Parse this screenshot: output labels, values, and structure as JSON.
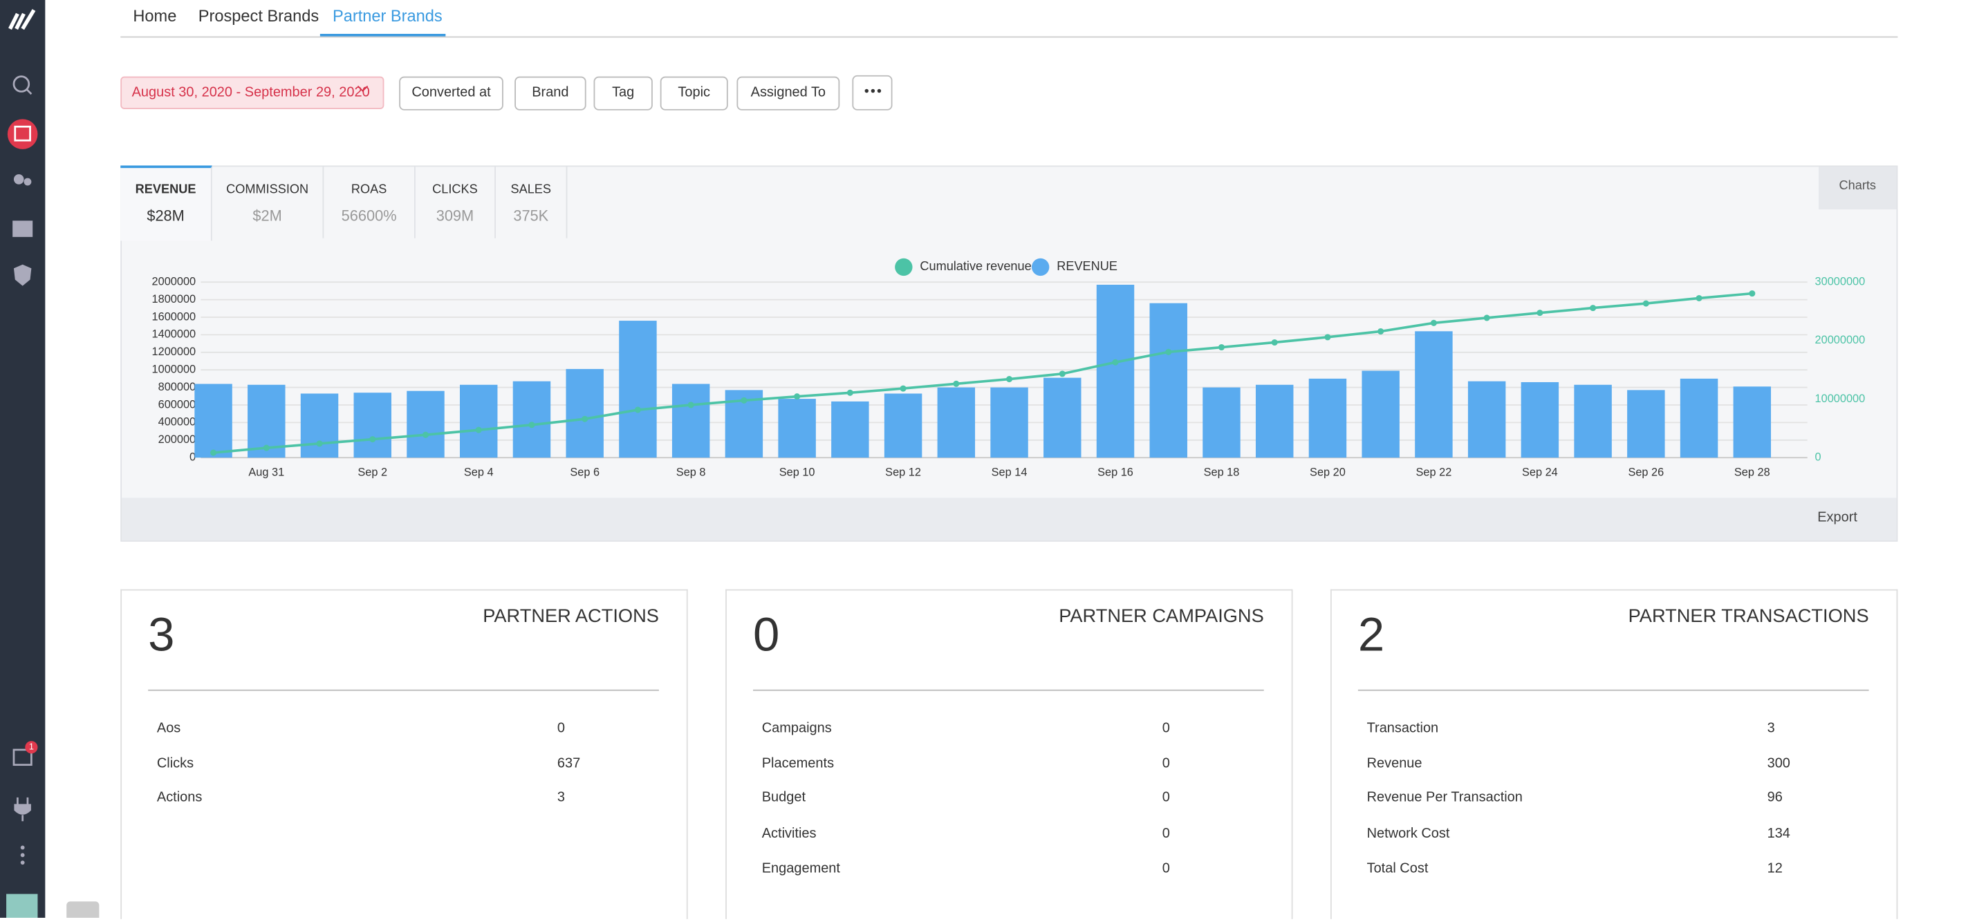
{
  "nav": {
    "tabs": [
      "Home",
      "Prospect Brands",
      "Partner Brands"
    ]
  },
  "sidebar": {
    "badge": "1"
  },
  "filters": {
    "date_range": "August 30, 2020 - September 29, 2020",
    "buttons": [
      "Converted at",
      "Brand",
      "Tag",
      "Topic",
      "Assigned To"
    ]
  },
  "metrics": [
    {
      "label": "REVENUE",
      "value": "$28M"
    },
    {
      "label": "COMMISSION",
      "value": "$2M"
    },
    {
      "label": "ROAS",
      "value": "56600%"
    },
    {
      "label": "CLICKS",
      "value": "309M"
    },
    {
      "label": "SALES",
      "value": "375K"
    }
  ],
  "charts_menu": "Charts",
  "export": "Export",
  "chart_data": {
    "type": "bar",
    "categories": [
      null,
      "Aug 31",
      null,
      "Sep 2",
      null,
      "Sep 4",
      null,
      "Sep 6",
      null,
      "Sep 8",
      null,
      "Sep 10",
      null,
      "Sep 12",
      null,
      "Sep 14",
      null,
      "Sep 16",
      null,
      "Sep 18",
      null,
      "Sep 20",
      null,
      "Sep 22",
      null,
      "Sep 24",
      null,
      "Sep 26",
      null,
      "Sep 28"
    ],
    "series": [
      {
        "name": "Cumulative revenue",
        "type": "line",
        "axis": "y2",
        "color": "#4cc3a6",
        "values": [
          840000,
          1670000,
          2400000,
          3140000,
          3900000,
          4730000,
          5600000,
          6610000,
          8170000,
          9010000,
          9780000,
          10450000,
          11090000,
          11820000,
          12620000,
          13420000,
          14330000,
          16300000,
          18060000,
          18860000,
          19690000,
          20590000,
          21580000,
          23020000,
          23890000,
          24750000,
          25580000,
          26350000,
          27250000,
          28060000
        ]
      },
      {
        "name": "REVENUE",
        "type": "bar",
        "color": "#5aabef",
        "values": [
          840000,
          830000,
          730000,
          740000,
          760000,
          830000,
          870000,
          1010000,
          1560000,
          840000,
          770000,
          670000,
          640000,
          730000,
          800000,
          800000,
          910000,
          1970000,
          1760000,
          800000,
          830000,
          900000,
          990000,
          1440000,
          870000,
          860000,
          830000,
          770000,
          900000,
          810000
        ]
      }
    ],
    "ylim": [
      0,
      2000000
    ],
    "yticks": [
      0,
      200000,
      400000,
      600000,
      800000,
      1000000,
      1200000,
      1400000,
      1600000,
      1800000,
      2000000
    ],
    "y2lim": [
      0,
      30000000
    ],
    "y2ticks": [
      0,
      10000000,
      20000000,
      30000000
    ],
    "grid": true,
    "legend": "top"
  },
  "cards": [
    {
      "count": 3,
      "title": "PARTNER ACTIONS",
      "rows": [
        [
          "Aos",
          0
        ],
        [
          "Clicks",
          637
        ],
        [
          "Actions",
          3
        ]
      ]
    },
    {
      "count": 0,
      "title": "PARTNER CAMPAIGNS",
      "rows": [
        [
          "Campaigns",
          0
        ],
        [
          "Placements",
          0
        ],
        [
          "Budget",
          0
        ],
        [
          "Activities",
          0
        ],
        [
          "Engagement",
          0
        ]
      ]
    },
    {
      "count": 2,
      "title": "PARTNER TRANSACTIONS",
      "rows": [
        [
          "Transaction",
          3
        ],
        [
          "Revenue",
          300
        ],
        [
          "Revenue Per Transaction",
          96
        ],
        [
          "Network Cost",
          134
        ],
        [
          "Total Cost",
          12
        ]
      ]
    }
  ]
}
